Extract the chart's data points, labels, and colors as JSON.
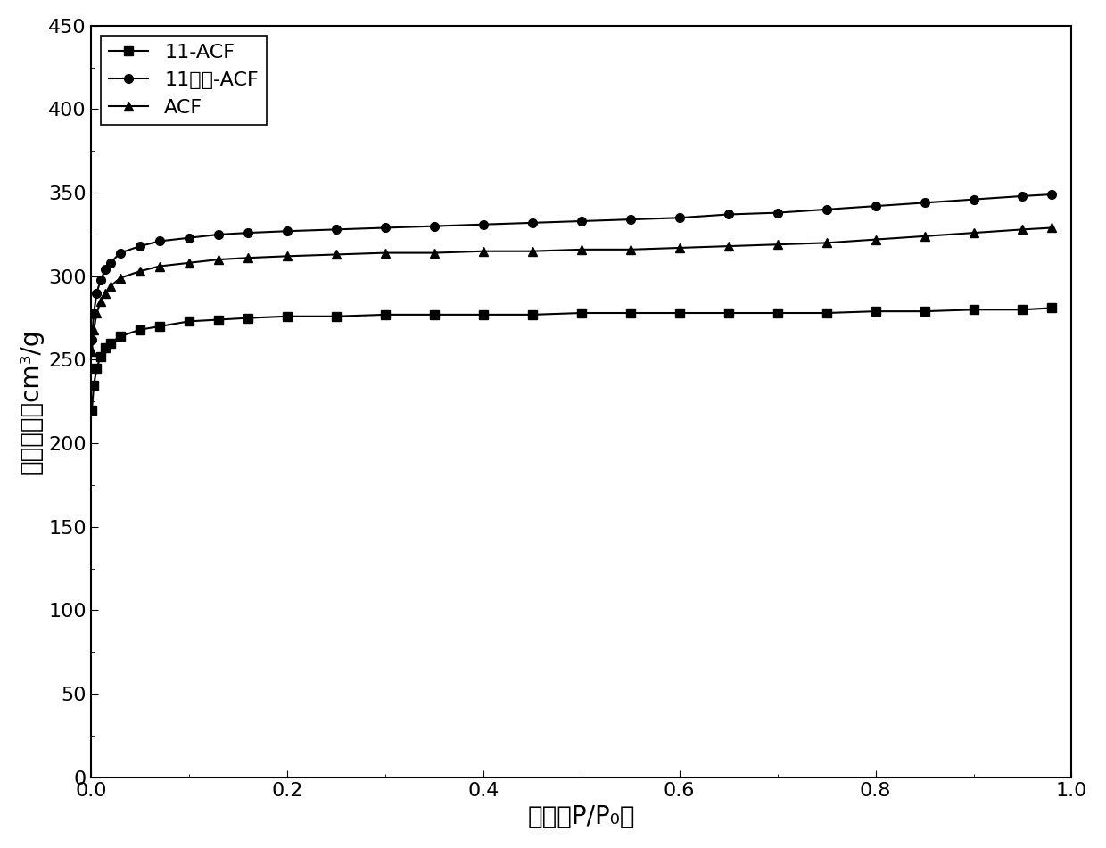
{
  "title": "",
  "xlabel": "压力（P/P₀）",
  "ylabel": "氮气吸附量cm³/g",
  "xlim": [
    0,
    1.0
  ],
  "ylim": [
    0,
    450
  ],
  "yticks": [
    0,
    50,
    100,
    150,
    200,
    250,
    300,
    350,
    400,
    450
  ],
  "xticks": [
    0.0,
    0.2,
    0.4,
    0.6,
    0.8,
    1.0
  ],
  "series": [
    {
      "label": "11-ACF",
      "marker": "s",
      "color": "#000000",
      "x": [
        0.001,
        0.003,
        0.006,
        0.01,
        0.015,
        0.02,
        0.03,
        0.05,
        0.07,
        0.1,
        0.13,
        0.16,
        0.2,
        0.25,
        0.3,
        0.35,
        0.4,
        0.45,
        0.5,
        0.55,
        0.6,
        0.65,
        0.7,
        0.75,
        0.8,
        0.85,
        0.9,
        0.95,
        0.98
      ],
      "y": [
        220,
        235,
        245,
        252,
        257,
        260,
        264,
        268,
        270,
        273,
        274,
        275,
        276,
        276,
        277,
        277,
        277,
        277,
        278,
        278,
        278,
        278,
        278,
        278,
        279,
        279,
        280,
        280,
        281
      ]
    },
    {
      "label": "11无镍-ACF",
      "marker": "o",
      "color": "#000000",
      "x": [
        0.001,
        0.003,
        0.006,
        0.01,
        0.015,
        0.02,
        0.03,
        0.05,
        0.07,
        0.1,
        0.13,
        0.16,
        0.2,
        0.25,
        0.3,
        0.35,
        0.4,
        0.45,
        0.5,
        0.55,
        0.6,
        0.65,
        0.7,
        0.75,
        0.8,
        0.85,
        0.9,
        0.95,
        0.98
      ],
      "y": [
        262,
        278,
        290,
        298,
        304,
        308,
        314,
        318,
        321,
        323,
        325,
        326,
        327,
        328,
        329,
        330,
        331,
        332,
        333,
        334,
        335,
        337,
        338,
        340,
        342,
        344,
        346,
        348,
        349
      ]
    },
    {
      "label": "ACF",
      "marker": "^",
      "color": "#000000",
      "x": [
        0.001,
        0.003,
        0.006,
        0.01,
        0.015,
        0.02,
        0.03,
        0.05,
        0.07,
        0.1,
        0.13,
        0.16,
        0.2,
        0.25,
        0.3,
        0.35,
        0.4,
        0.45,
        0.5,
        0.55,
        0.6,
        0.65,
        0.7,
        0.75,
        0.8,
        0.85,
        0.9,
        0.95,
        0.98
      ],
      "y": [
        255,
        268,
        278,
        285,
        290,
        294,
        299,
        303,
        306,
        308,
        310,
        311,
        312,
        313,
        314,
        314,
        315,
        315,
        316,
        316,
        317,
        318,
        319,
        320,
        322,
        324,
        326,
        328,
        329
      ]
    }
  ]
}
